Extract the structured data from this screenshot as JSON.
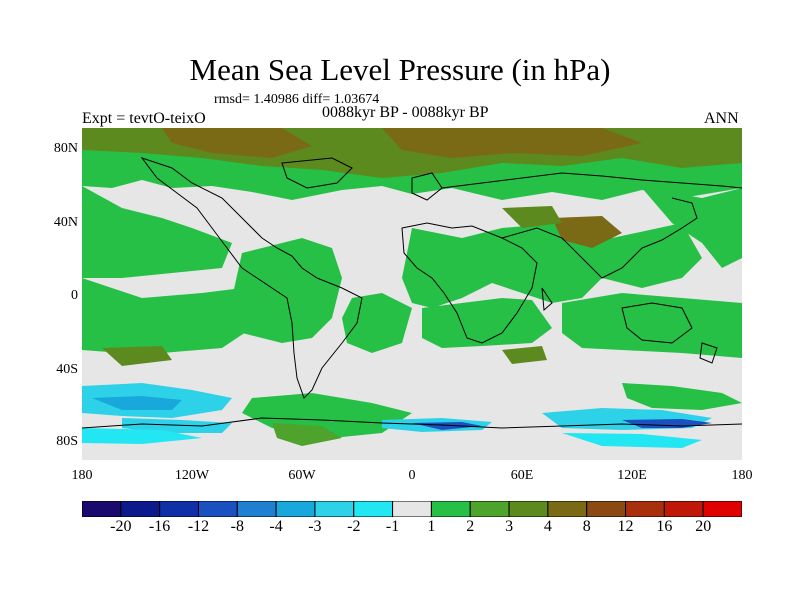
{
  "title": "Mean Sea Level Pressure (in hPa)",
  "stats": "rmsd= 1.40986 diff= 1.03674",
  "left_label": "Expt = tevtO-teixO",
  "center_label": "0088kyr BP - 0088kyr BP",
  "right_label": "ANN",
  "lat_labels": [
    "80N",
    "40N",
    "0",
    "40S",
    "80S"
  ],
  "lon_labels": [
    "180",
    "120W",
    "60W",
    "0",
    "60E",
    "120E",
    "180"
  ],
  "legend": {
    "labels": [
      "-20",
      "-16",
      "-12",
      "-8",
      "-4",
      "-3",
      "-2",
      "-1",
      "1",
      "2",
      "3",
      "4",
      "8",
      "12",
      "16",
      "20"
    ],
    "colors": [
      "#1a0a6e",
      "#0d1a8c",
      "#1030a8",
      "#1a50bf",
      "#1f7fd0",
      "#18a8dc",
      "#2dd2e8",
      "#22e6f2",
      "#e6e6e6",
      "#27c046",
      "#4ea32c",
      "#5c8a1e",
      "#7a6a16",
      "#8a4a12",
      "#a8300c",
      "#c01808",
      "#e00000"
    ]
  }
}
